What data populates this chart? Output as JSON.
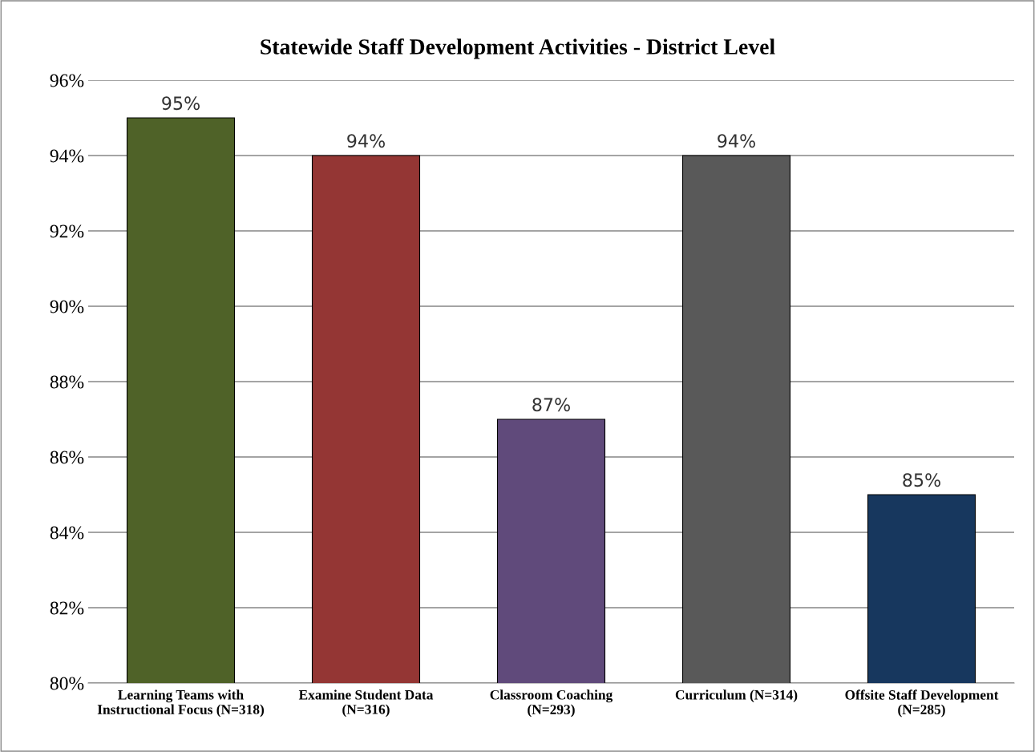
{
  "chart_data": {
    "type": "bar",
    "title": "Statewide Staff Development Activities - District Level",
    "categories": [
      "Learning Teams with\nInstructional Focus (N=318)",
      "Examine Student Data\n(N=316)",
      "Classroom Coaching\n(N=293)",
      "Curriculum (N=314)",
      "Offsite Staff Development\n(N=285)"
    ],
    "values": [
      95,
      94,
      87,
      94,
      85
    ],
    "colors": [
      "#4f6228",
      "#943634",
      "#604a7b",
      "#595959",
      "#17375e"
    ],
    "value_labels": [
      "95%",
      "94%",
      "87%",
      "94%",
      "85%"
    ],
    "ylim": [
      80,
      96
    ],
    "yticks": [
      {
        "value": 80,
        "label": "80%"
      },
      {
        "value": 82,
        "label": "82%"
      },
      {
        "value": 84,
        "label": "84%"
      },
      {
        "value": 86,
        "label": "86%"
      },
      {
        "value": 88,
        "label": "88%"
      },
      {
        "value": 90,
        "label": "90%"
      },
      {
        "value": 92,
        "label": "92%"
      },
      {
        "value": 94,
        "label": "94%"
      },
      {
        "value": 96,
        "label": "96%"
      }
    ],
    "grid": "y",
    "legend": false
  }
}
